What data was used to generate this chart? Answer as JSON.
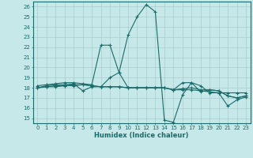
{
  "xlabel": "Humidex (Indice chaleur)",
  "xlim": [
    -0.5,
    23.5
  ],
  "ylim": [
    14.5,
    26.5
  ],
  "yticks": [
    15,
    16,
    17,
    18,
    19,
    20,
    21,
    22,
    23,
    24,
    25,
    26
  ],
  "xticks": [
    0,
    1,
    2,
    3,
    4,
    5,
    6,
    7,
    8,
    9,
    10,
    11,
    12,
    13,
    14,
    15,
    16,
    17,
    18,
    19,
    20,
    21,
    22,
    23
  ],
  "bg_color": "#c6e8e8",
  "line_color": "#1a6b6b",
  "grid_color": "#a8cccc",
  "series": [
    [
      18.0,
      18.2,
      18.3,
      18.3,
      18.4,
      17.7,
      18.1,
      18.1,
      19.0,
      19.5,
      23.2,
      25.0,
      26.2,
      25.5,
      14.8,
      14.6,
      17.3,
      18.5,
      18.2,
      17.5,
      17.5,
      16.2,
      16.8,
      17.1
    ],
    [
      18.2,
      18.3,
      18.4,
      18.5,
      18.5,
      18.4,
      18.3,
      22.2,
      22.2,
      19.5,
      18.0,
      18.0,
      18.0,
      18.0,
      18.0,
      17.8,
      17.9,
      18.0,
      17.8,
      17.8,
      17.7,
      17.2,
      17.0,
      17.2
    ],
    [
      18.0,
      18.1,
      18.1,
      18.2,
      18.2,
      18.3,
      18.2,
      18.1,
      18.1,
      18.1,
      18.0,
      18.0,
      18.0,
      18.0,
      18.0,
      17.8,
      17.8,
      17.8,
      17.7,
      17.6,
      17.5,
      17.5,
      17.5,
      17.5
    ],
    [
      18.0,
      18.1,
      18.2,
      18.2,
      18.3,
      18.3,
      18.2,
      18.1,
      18.1,
      18.1,
      18.0,
      18.0,
      18.0,
      18.0,
      18.0,
      17.8,
      18.5,
      18.5,
      17.6,
      17.8,
      17.7,
      17.2,
      17.0,
      17.2
    ]
  ]
}
